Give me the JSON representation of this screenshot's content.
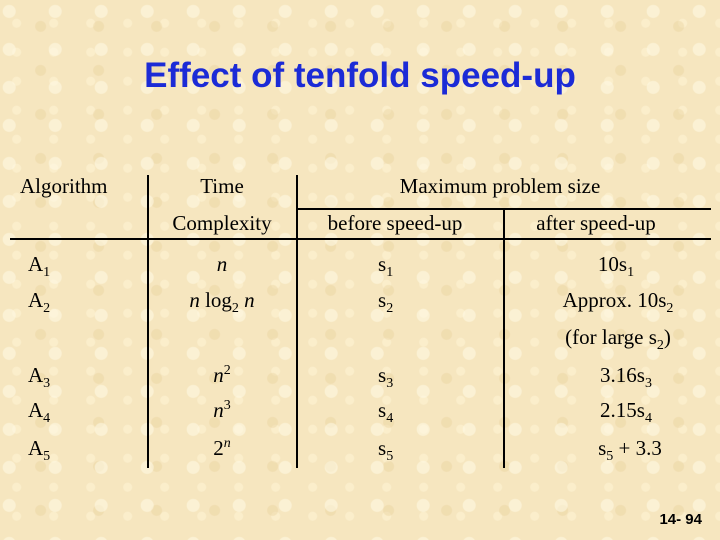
{
  "slide": {
    "title": "Effect of tenfold speed-up",
    "page_number": "14- 94"
  },
  "table": {
    "headers": {
      "algorithm": "Algorithm",
      "time_line1": "Time",
      "time_line2": "Complexity",
      "max_size": "Maximum problem size",
      "before": "before speed-up",
      "after": "after speed-up"
    },
    "rows": [
      {
        "alg": "A",
        "alg_sub": "1",
        "time": "n",
        "size": "s",
        "size_sub": "1",
        "after_pre": "10s",
        "after_sub": "1",
        "after_post": ""
      },
      {
        "alg": "A",
        "alg_sub": "2",
        "time_a": "n",
        "time_mid": " log",
        "time_sub": "2",
        "time_b": " n",
        "size": "s",
        "size_sub": "2",
        "after_pre": "Approx. 10s",
        "after_sub": "2",
        "after_post": ""
      },
      {
        "note_pre": "(for large s",
        "note_sub": "2",
        "note_post": ")"
      },
      {
        "alg": "A",
        "alg_sub": "3",
        "time": "n",
        "time_sup": "2",
        "size": "s",
        "size_sub": "3",
        "after_pre": "3.16s",
        "after_sub": "3",
        "after_post": ""
      },
      {
        "alg": "A",
        "alg_sub": "4",
        "time": "n",
        "time_sup": "3",
        "size": "s",
        "size_sub": "4",
        "after_pre": "2.15s",
        "after_sub": "4",
        "after_post": ""
      },
      {
        "alg": "A",
        "alg_sub": "5",
        "time": "2",
        "time_sup": "n",
        "size": "s",
        "size_sub": "5",
        "after_pre": "s",
        "after_sub": "5",
        "after_post": " + 3.3"
      }
    ]
  }
}
